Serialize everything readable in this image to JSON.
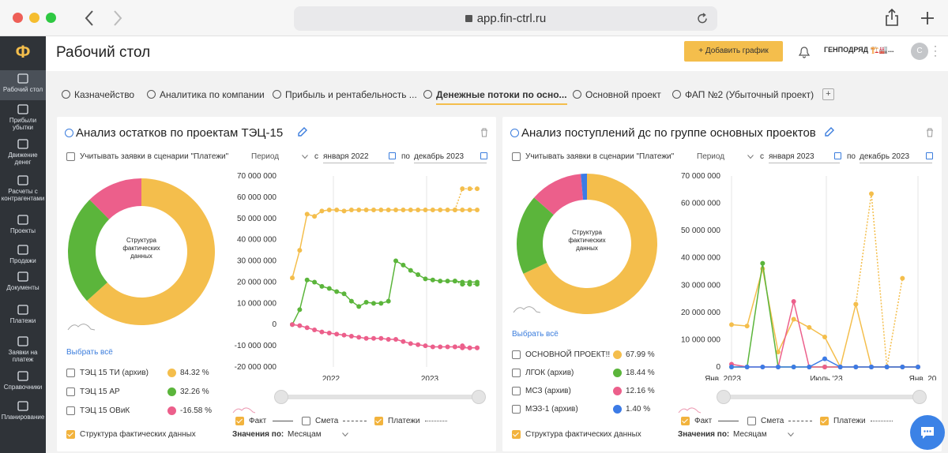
{
  "browser": {
    "url": "app.fin-ctrl.ru"
  },
  "colors": {
    "yellow": "#f4be4c",
    "green": "#5bb53b",
    "pink": "#ec5f8b",
    "blue": "#3c7be6",
    "sidebar": "#2f3338",
    "accent": "#f4be4c"
  },
  "sidebar": {
    "logo": "Ф",
    "items": [
      {
        "label": "Рабочий стол",
        "icon": "dashboard-icon"
      },
      {
        "label": "Прибыли убытки",
        "icon": "bar-chart-icon"
      },
      {
        "label": "Движение денег",
        "icon": "money-flow-icon"
      },
      {
        "label": "Расчеты с контрагентами",
        "icon": "handshake-icon"
      },
      {
        "label": "Проекты",
        "icon": "briefcase-icon"
      },
      {
        "label": "Продажи",
        "icon": "dollar-icon"
      },
      {
        "label": "Документы",
        "icon": "documents-icon"
      },
      {
        "label": "Платежи",
        "icon": "wallet-icon"
      },
      {
        "label": "Заявки на платеж",
        "icon": "request-icon"
      },
      {
        "label": "Справочники",
        "icon": "folder-icon"
      },
      {
        "label": "Планирование",
        "icon": "planning-icon"
      }
    ]
  },
  "header": {
    "title": "Рабочий стол",
    "add_button": "+ Добавить график",
    "company": "ГЕНПОДРЯД 🏗️🏭...",
    "avatar": "С"
  },
  "tabs": [
    {
      "label": "Казначейство",
      "active": false
    },
    {
      "label": "Аналитика по компании",
      "active": false
    },
    {
      "label": "Прибыль и рентабельность ...",
      "active": false
    },
    {
      "label": "Денежные потоки по осно...",
      "active": true
    },
    {
      "label": "Основной проект",
      "active": false
    },
    {
      "label": "ФАП №2 (Убыточный проект)",
      "active": false
    }
  ],
  "add_tab": "+",
  "panel1": {
    "title": "Анализ остатков по проектам ТЭЦ-15",
    "consider_requests": "Учитывать заявки в сценарии \"Платежи\"",
    "period_label": "Период",
    "from_prefix": "с",
    "from": "января 2022",
    "to_prefix": "по",
    "to": "декабрь 2023",
    "donut_label": "Структура фактических данных",
    "select_all": "Выбрать всё",
    "legend": [
      {
        "name": "ТЭЦ 15 ТИ (архив)",
        "value": "84.32 %",
        "color": "#f4be4c"
      },
      {
        "name": "ТЭЦ 15 АР",
        "value": "32.26 %",
        "color": "#5bb53b"
      },
      {
        "name": "ТЭЦ 15 ОВиК",
        "value": "-16.58 %",
        "color": "#ec5f8b"
      }
    ],
    "structure_check": "Структура фактических данных",
    "values_by_label": "Значения по:",
    "values_by": "Месяцам",
    "series_legend": {
      "fact": "Факт",
      "plan": "Смета",
      "payments": "Платежи"
    }
  },
  "panel2": {
    "title": "Анализ поступлений дс по группе основных проектов",
    "consider_requests": "Учитывать заявки в сценарии \"Платежи\"",
    "period_label": "Период",
    "from_prefix": "с",
    "from": "января 2023",
    "to_prefix": "по",
    "to": "декабрь 2023",
    "donut_label": "Структура фактических данных",
    "select_all": "Выбрать всё",
    "legend": [
      {
        "name": "ОСНОВНОЙ ПРОЕКТ!!",
        "value": "67.99 %",
        "color": "#f4be4c"
      },
      {
        "name": "ЛГОК (архив)",
        "value": "18.44 %",
        "color": "#5bb53b"
      },
      {
        "name": "МСЗ (архив)",
        "value": "12.16 %",
        "color": "#ec5f8b"
      },
      {
        "name": "МЭЗ-1 (архив)",
        "value": "1.40 %",
        "color": "#3c7be6"
      }
    ],
    "structure_check": "Структура фактических данных",
    "values_by_label": "Значения по:",
    "values_by": "Месяцам",
    "series_legend": {
      "fact": "Факт",
      "plan": "Смета",
      "payments": "Платежи"
    }
  },
  "chart_data": [
    {
      "type": "pie",
      "title": "Структура фактических данных",
      "categories": [
        "ТЭЦ 15 ТИ (архив)",
        "ТЭЦ 15 АР",
        "ТЭЦ 15 ОВиК"
      ],
      "values": [
        84.32,
        32.26,
        16.58
      ],
      "colors": [
        "#f4be4c",
        "#5bb53b",
        "#ec5f8b"
      ]
    },
    {
      "type": "line",
      "ylim": [
        -20000000,
        70000000
      ],
      "yticks": [
        "70 000 000",
        "60 000 000",
        "50 000 000",
        "40 000 000",
        "30 000 000",
        "20 000 000",
        "10 000 000",
        "0",
        "-10 000 000",
        "-20 000 000"
      ],
      "xticks": [
        "2022",
        "2023"
      ],
      "x": [
        "2021-11",
        "2021-12",
        "2022-01",
        "2022-02",
        "2022-03",
        "2022-04",
        "2022-05",
        "2022-06",
        "2022-07",
        "2022-08",
        "2022-09",
        "2022-10",
        "2022-11",
        "2022-12",
        "2023-01",
        "2023-02",
        "2023-03",
        "2023-04",
        "2023-05",
        "2023-06",
        "2023-07",
        "2023-08",
        "2023-09",
        "2023-10",
        "2023-11",
        "2023-12"
      ],
      "series": [
        {
          "color": "#f4be4c",
          "style": "solid",
          "values": [
            22000000,
            35000000,
            52000000,
            51000000,
            53500000,
            54000000,
            54000000,
            53500000,
            54000000,
            54000000,
            54000000,
            54000000,
            54000000,
            54000000,
            54000000,
            54000000,
            54000000,
            54000000,
            54000000,
            54000000,
            54000000,
            54000000,
            54000000,
            54000000,
            54000000,
            54000000
          ]
        },
        {
          "color": "#f4be4c",
          "style": "dotted",
          "values": [
            null,
            null,
            null,
            null,
            null,
            null,
            null,
            null,
            null,
            null,
            null,
            null,
            null,
            null,
            null,
            null,
            null,
            null,
            null,
            null,
            null,
            null,
            54000000,
            64000000,
            64000000,
            64000000
          ]
        },
        {
          "color": "#5bb53b",
          "style": "solid",
          "values": [
            0,
            7000000,
            21000000,
            20000000,
            18000000,
            17000000,
            15500000,
            14500000,
            11000000,
            8500000,
            10500000,
            10000000,
            10000000,
            11000000,
            30000000,
            28000000,
            25500000,
            23500000,
            21500000,
            21000000,
            20500000,
            20500000,
            20500000,
            20000000,
            20000000,
            20000000
          ]
        },
        {
          "color": "#5bb53b",
          "style": "dotted",
          "values": [
            null,
            null,
            null,
            null,
            null,
            null,
            null,
            null,
            null,
            null,
            null,
            null,
            null,
            null,
            null,
            null,
            null,
            null,
            null,
            null,
            null,
            null,
            20500000,
            19000000,
            19000000,
            19000000
          ]
        },
        {
          "color": "#ec5f8b",
          "style": "solid",
          "values": [
            0,
            -500000,
            -1500000,
            -2500000,
            -3500000,
            -4000000,
            -4500000,
            -5000000,
            -5500000,
            -6000000,
            -6500000,
            -6500000,
            -6500000,
            -7000000,
            -7000000,
            -8000000,
            -9000000,
            -9500000,
            -10000000,
            -10500000,
            -10500000,
            -10500000,
            -10500000,
            -11000000,
            -11000000,
            -11000000
          ]
        },
        {
          "color": "#ec5f8b",
          "style": "dotted",
          "values": [
            null,
            null,
            null,
            null,
            null,
            null,
            null,
            null,
            null,
            null,
            null,
            null,
            null,
            null,
            null,
            null,
            null,
            null,
            null,
            null,
            null,
            null,
            -10500000,
            -10000000,
            -11000000,
            -11000000
          ]
        }
      ]
    },
    {
      "type": "pie",
      "title": "Структура фактических данных",
      "categories": [
        "ОСНОВНОЙ ПРОЕКТ!!",
        "ЛГОК (архив)",
        "МСЗ (архив)",
        "МЭЗ-1 (архив)"
      ],
      "values": [
        67.99,
        18.44,
        12.16,
        1.4
      ],
      "colors": [
        "#f4be4c",
        "#5bb53b",
        "#ec5f8b",
        "#3c7be6"
      ]
    },
    {
      "type": "line",
      "ylim": [
        0,
        70000000
      ],
      "yticks": [
        "70 000 000",
        "60 000 000",
        "50 000 000",
        "40 000 000",
        "30 000 000",
        "20 000 000",
        "10 000 000",
        "0"
      ],
      "xticks": [
        "Янв. 2023",
        "Июль '23",
        "Янв. 20"
      ],
      "x": [
        "2023-01",
        "2023-02",
        "2023-03",
        "2023-04",
        "2023-05",
        "2023-06",
        "2023-07",
        "2023-08",
        "2023-09",
        "2023-10",
        "2023-11",
        "2023-12",
        "2024-01"
      ],
      "series": [
        {
          "color": "#f4be4c",
          "style": "solid",
          "values": [
            15500000,
            15000000,
            36000000,
            5500000,
            17500000,
            14500000,
            11000000,
            0,
            23000000,
            0,
            0,
            0,
            0
          ]
        },
        {
          "color": "#f4be4c",
          "style": "dotted",
          "values": [
            null,
            null,
            null,
            null,
            null,
            null,
            null,
            null,
            23000000,
            63500000,
            0,
            32500000,
            null
          ]
        },
        {
          "color": "#5bb53b",
          "style": "solid",
          "values": [
            0,
            0,
            38000000,
            0,
            0,
            0,
            0,
            0,
            0,
            0,
            0,
            0,
            0
          ]
        },
        {
          "color": "#ec5f8b",
          "style": "solid",
          "values": [
            1000000,
            0,
            0,
            0,
            24000000,
            0,
            0,
            0,
            0,
            0,
            0,
            0,
            0
          ]
        },
        {
          "color": "#3c7be6",
          "style": "solid",
          "values": [
            0,
            0,
            0,
            0,
            0,
            0,
            3000000,
            0,
            0,
            0,
            0,
            0,
            0
          ]
        }
      ]
    }
  ]
}
